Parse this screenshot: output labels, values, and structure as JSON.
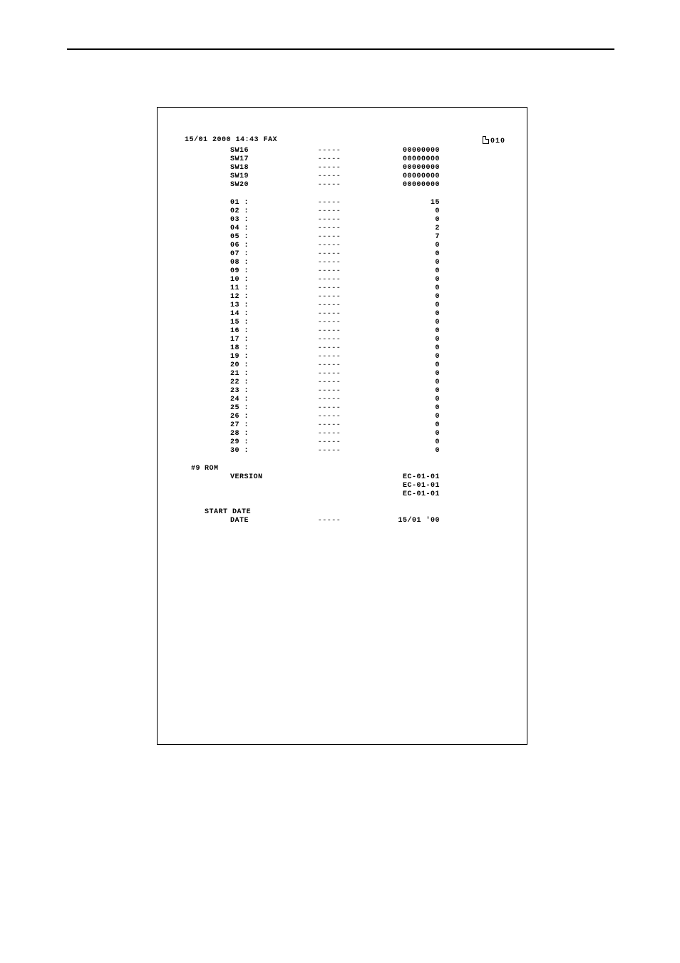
{
  "page": {
    "background_color": "#ffffff",
    "text_color": "#000000",
    "rule_color": "#000000",
    "font_family": "Courier New, monospace",
    "base_fontsize": 10,
    "fax_timestamp": "15/01 2000 14:43 FAX",
    "page_number": "010"
  },
  "dash": "-----",
  "switches": [
    {
      "label": "SW16",
      "value": "00000000"
    },
    {
      "label": "SW17",
      "value": "00000000"
    },
    {
      "label": "SW18",
      "value": "00000000"
    },
    {
      "label": "SW19",
      "value": "00000000"
    },
    {
      "label": "SW20",
      "value": "00000000"
    }
  ],
  "counters": [
    {
      "label": "01 :",
      "value": "15"
    },
    {
      "label": "02 :",
      "value": "0"
    },
    {
      "label": "03 :",
      "value": "0"
    },
    {
      "label": "04 :",
      "value": "2"
    },
    {
      "label": "05 :",
      "value": "7"
    },
    {
      "label": "06 :",
      "value": "0"
    },
    {
      "label": "07 :",
      "value": "0"
    },
    {
      "label": "08 :",
      "value": "0"
    },
    {
      "label": "09 :",
      "value": "0"
    },
    {
      "label": "10 :",
      "value": "0"
    },
    {
      "label": "11 :",
      "value": "0"
    },
    {
      "label": "12 :",
      "value": "0"
    },
    {
      "label": "13 :",
      "value": "0"
    },
    {
      "label": "14 :",
      "value": "0"
    },
    {
      "label": "15 :",
      "value": "0"
    },
    {
      "label": "16 :",
      "value": "0"
    },
    {
      "label": "17 :",
      "value": "0"
    },
    {
      "label": "18 :",
      "value": "0"
    },
    {
      "label": "19 :",
      "value": "0"
    },
    {
      "label": "20 :",
      "value": "0"
    },
    {
      "label": "21 :",
      "value": "0"
    },
    {
      "label": "22 :",
      "value": "0"
    },
    {
      "label": "23 :",
      "value": "0"
    },
    {
      "label": "24 :",
      "value": "0"
    },
    {
      "label": "25 :",
      "value": "0"
    },
    {
      "label": "26 :",
      "value": "0"
    },
    {
      "label": "27 :",
      "value": "0"
    },
    {
      "label": "28 :",
      "value": "0"
    },
    {
      "label": "29 :",
      "value": "0"
    },
    {
      "label": "30 :",
      "value": "0"
    }
  ],
  "rom": {
    "marker": "#9",
    "title": "ROM",
    "subtitle": "VERSION",
    "values": [
      "EC-01-01",
      "EC-01-01",
      "EC-01-01"
    ]
  },
  "start_date": {
    "title": "START DATE",
    "label": "DATE",
    "value": "15/01 '00"
  }
}
